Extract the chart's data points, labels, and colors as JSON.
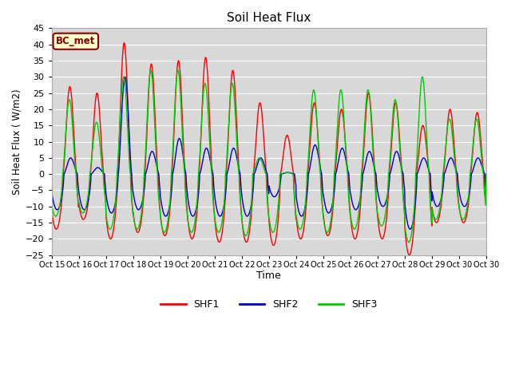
{
  "title": "Soil Heat Flux",
  "ylabel": "Soil Heat Flux (W/m2)",
  "xlabel": "Time",
  "ylim": [
    -25,
    45
  ],
  "yticks": [
    -25,
    -20,
    -15,
    -10,
    -5,
    0,
    5,
    10,
    15,
    20,
    25,
    30,
    35,
    40,
    45
  ],
  "xtick_labels": [
    "Oct 15",
    "Oct 16",
    "Oct 17",
    "Oct 18",
    "Oct 19",
    "Oct 20",
    "Oct 21",
    "Oct 22",
    "Oct 23",
    "Oct 24",
    "Oct 25",
    "Oct 26",
    "Oct 27",
    "Oct 28",
    "Oct 29",
    "Oct 30"
  ],
  "colors": {
    "SHF1": "#ff0000",
    "SHF2": "#0000cc",
    "SHF3": "#00cc00"
  },
  "legend_label": "BC_met",
  "plot_bg_color": "#d8d8d8",
  "fig_bg_color": "#ffffff",
  "grid_color": "#ffffff",
  "linewidth": 1.0,
  "shf1_peaks": [
    27,
    25,
    40.5,
    34,
    35,
    36,
    32,
    22,
    12,
    22,
    20,
    25,
    22,
    15,
    20,
    19
  ],
  "shf1_troughs": [
    -17,
    -14,
    -20,
    -18,
    -19,
    -20,
    -21,
    -21,
    -22,
    -20,
    -19,
    -20,
    -20,
    -25,
    -15,
    -15
  ],
  "shf2_peaks": [
    5,
    2,
    30,
    7,
    11,
    8,
    8,
    5,
    0.5,
    9,
    8,
    7,
    7,
    5,
    5,
    5
  ],
  "shf2_troughs": [
    -11,
    -11,
    -12,
    -11,
    -13,
    -13,
    -13,
    -13,
    -7,
    -13,
    -12,
    -11,
    -10,
    -17,
    -10,
    -10
  ],
  "shf3_peaks": [
    23,
    16,
    30,
    32,
    32,
    28,
    28,
    5,
    0.5,
    26,
    26,
    26,
    23,
    30,
    17,
    17
  ],
  "shf3_troughs": [
    -13,
    -12,
    -17,
    -17,
    -18,
    -18,
    -18,
    -19,
    -18,
    -17,
    -18,
    -17,
    -16,
    -21,
    -14,
    -14
  ],
  "n_days": 16,
  "pts_per_day": 96
}
